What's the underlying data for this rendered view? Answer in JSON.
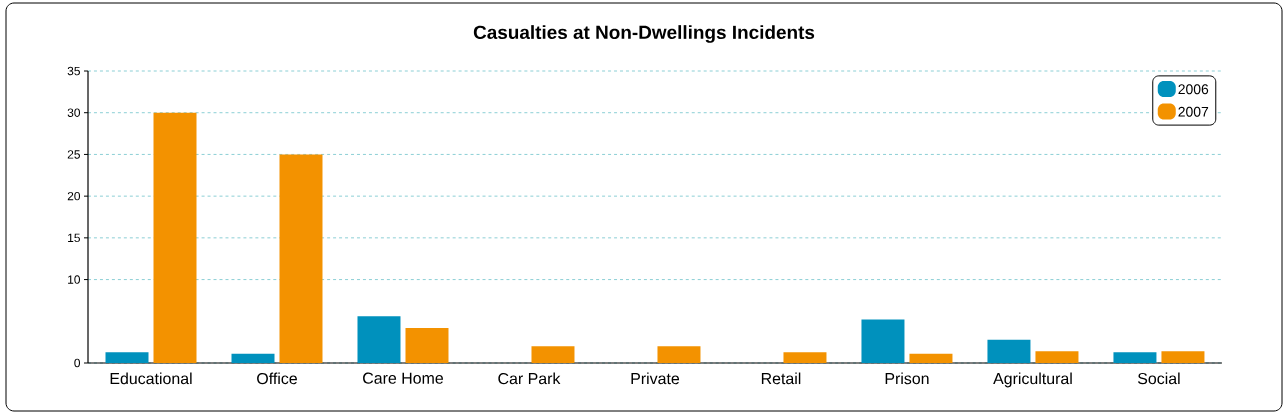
{
  "chart_data": {
    "type": "bar",
    "title": "Casualties at Non-Dwellings Incidents",
    "categories": [
      "Educational",
      "Office",
      "Care Home",
      "Car Park",
      "Private",
      "Retail",
      "Prison",
      "Agricultural",
      "Social"
    ],
    "series": [
      {
        "name": "2006",
        "color": "#0091bd",
        "values": [
          1.3,
          1.1,
          5.6,
          null,
          null,
          null,
          5.2,
          2.8,
          1.3
        ]
      },
      {
        "name": "2007",
        "color": "#f39200",
        "values": [
          30,
          25,
          4.2,
          2,
          2,
          1.3,
          1.1,
          1.4,
          1.4
        ]
      }
    ],
    "ylim": [
      0,
      35
    ],
    "yticks": [
      0,
      10,
      15,
      20,
      25,
      30,
      35
    ],
    "grid": "y",
    "legend": "top right"
  }
}
